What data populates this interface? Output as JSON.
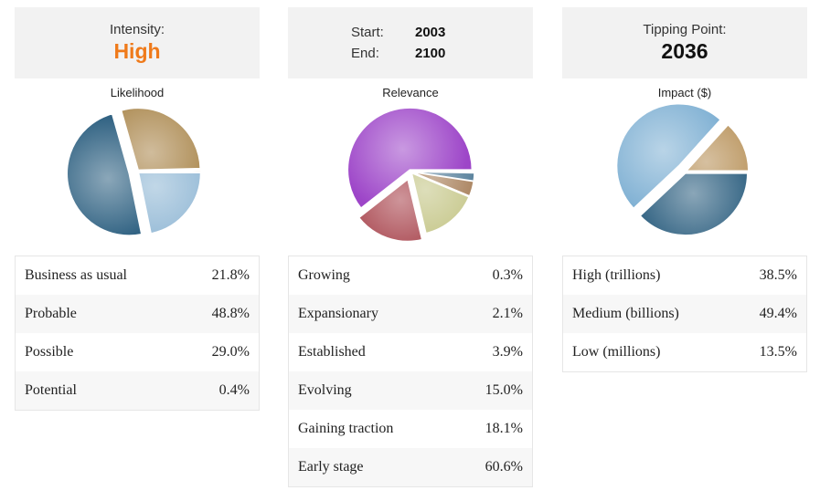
{
  "panels": [
    {
      "header": {
        "type": "single",
        "label": "Intensity:",
        "value": "High",
        "color": "#ef7a1a"
      },
      "chart_title": "Likelihood",
      "rows": [
        {
          "label": "Business as usual",
          "value": "21.8%"
        },
        {
          "label": "Probable",
          "value": "48.8%"
        },
        {
          "label": "Possible",
          "value": "29.0%"
        },
        {
          "label": "Potential",
          "value": "0.4%"
        }
      ]
    },
    {
      "header": {
        "type": "range",
        "start_label": "Start:",
        "start_value": "2003",
        "end_label": "End:",
        "end_value": "2100"
      },
      "chart_title": "Relevance",
      "rows": [
        {
          "label": "Growing",
          "value": "0.3%"
        },
        {
          "label": "Expansionary",
          "value": "2.1%"
        },
        {
          "label": "Established",
          "value": "3.9%"
        },
        {
          "label": "Evolving",
          "value": "15.0%"
        },
        {
          "label": "Gaining traction",
          "value": "18.1%"
        },
        {
          "label": "Early stage",
          "value": "60.6%"
        }
      ]
    },
    {
      "header": {
        "type": "single",
        "label": "Tipping Point:",
        "value": "2036",
        "color": "#111111"
      },
      "chart_title": "Impact ($)",
      "rows": [
        {
          "label": "High (trillions)",
          "value": "38.5%"
        },
        {
          "label": "Medium (billions)",
          "value": "49.4%"
        },
        {
          "label": "Low (millions)",
          "value": "13.5%"
        }
      ]
    }
  ],
  "chart_data": [
    {
      "type": "pie",
      "title": "Likelihood",
      "categories": [
        "Business as usual",
        "Probable",
        "Possible",
        "Potential"
      ],
      "values": [
        21.8,
        48.8,
        29.0,
        0.4
      ],
      "colors": [
        "#8fb6d4",
        "#2c5f80",
        "#a9864b",
        "#c9b88f"
      ],
      "exploded": "Probable"
    },
    {
      "type": "pie",
      "title": "Relevance",
      "categories": [
        "Growing",
        "Expansionary",
        "Established",
        "Evolving",
        "Gaining traction",
        "Early stage"
      ],
      "values": [
        0.3,
        2.1,
        3.9,
        15.0,
        18.1,
        60.6
      ],
      "colors": [
        "#2f6f8f",
        "#3a6a8a",
        "#9c6f45",
        "#c2c382",
        "#a53f48",
        "#9d45c8"
      ],
      "exploded": "Gaining traction"
    },
    {
      "type": "pie",
      "title": "Impact ($)",
      "categories": [
        "High (trillions)",
        "Medium (billions)",
        "Low (millions)"
      ],
      "values": [
        38.5,
        49.4,
        13.5
      ],
      "colors": [
        "#2a5d7e",
        "#7fb0d3",
        "#b58d52"
      ],
      "exploded": "Medium (billions)"
    }
  ]
}
